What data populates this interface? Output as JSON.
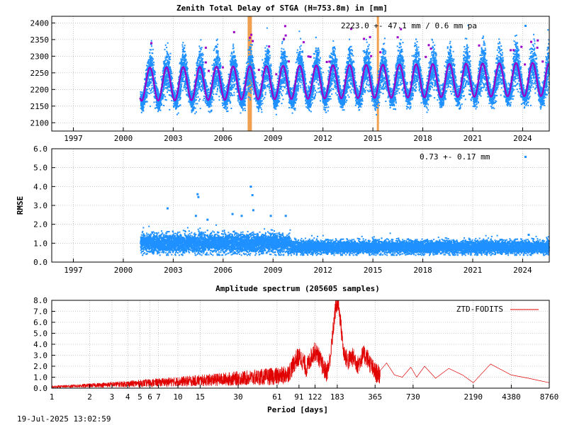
{
  "timestamp": "19-Jul-2025 13:02:59",
  "chart_data": [
    {
      "type": "scatter",
      "title": "Zenith Total Delay of STGA (H=753.8m) in [mm]",
      "xlabel": "",
      "ylabel": "",
      "xlim": [
        1995.7,
        2025.6
      ],
      "ylim": [
        2075,
        2420
      ],
      "x_ticks": [
        "1997",
        "2000",
        "2003",
        "2006",
        "2009",
        "2012",
        "2015",
        "2018",
        "2021",
        "2024"
      ],
      "y_ticks": [
        "2100",
        "2150",
        "2200",
        "2250",
        "2300",
        "2350",
        "2400"
      ],
      "annotation": "2223.0 +-  47.1 mm /  0.6 mm pa",
      "data_start": 2001.0,
      "data_end": 2025.55,
      "mean": 2223.0,
      "std": 47.1,
      "trend_per_year": 0.6,
      "seasonal_amplitude": 50,
      "seasonal_min_at": 0.1,
      "highlight_epochs": [
        2007.6,
        2015.3
      ],
      "highlight_color": "#f0a050",
      "point_color": "#1e90ff",
      "fit_color": "#9a00c8",
      "grid": true
    },
    {
      "type": "scatter",
      "title": "",
      "xlabel": "",
      "ylabel": "RMSE",
      "xlim": [
        1995.7,
        2025.6
      ],
      "ylim": [
        0.0,
        6.0
      ],
      "x_ticks": [
        "1997",
        "2000",
        "2003",
        "2006",
        "2009",
        "2012",
        "2015",
        "2018",
        "2021",
        "2024"
      ],
      "y_ticks": [
        "0.0",
        "1.0",
        "2.0",
        "3.0",
        "4.0",
        "5.0",
        "6.0"
      ],
      "annotation": "0.73 +-  0.17 mm",
      "data_start": 2001.0,
      "data_end": 2025.55,
      "mean": 0.73,
      "std": 0.17,
      "outliers": [
        {
          "x": 2002.6,
          "y": 2.9
        },
        {
          "x": 2004.4,
          "y": 3.65
        },
        {
          "x": 2004.45,
          "y": 3.5
        },
        {
          "x": 2004.3,
          "y": 2.5
        },
        {
          "x": 2005.0,
          "y": 2.3
        },
        {
          "x": 2006.5,
          "y": 2.6
        },
        {
          "x": 2007.05,
          "y": 2.5
        },
        {
          "x": 2007.6,
          "y": 4.05
        },
        {
          "x": 2007.7,
          "y": 3.6
        },
        {
          "x": 2007.75,
          "y": 2.8
        },
        {
          "x": 2008.8,
          "y": 2.5
        },
        {
          "x": 2009.7,
          "y": 2.5
        },
        {
          "x": 2024.3,
          "y": 1.5
        }
      ],
      "point_color": "#1e90ff",
      "grid": true
    },
    {
      "type": "line",
      "title": "Amplitude spectrum (205605 samples)",
      "xlabel": "Period [days]",
      "ylabel": "",
      "x_scale": "log",
      "xlim": [
        1,
        8760
      ],
      "ylim": [
        0.0,
        8.0
      ],
      "x_ticks": [
        "1",
        "2",
        "3",
        "4",
        "5",
        "6",
        "7",
        "10",
        "15",
        "30",
        "61",
        "91",
        "122",
        "183",
        "365",
        "730",
        "2190",
        "4380",
        "8760"
      ],
      "y_ticks": [
        "0.0",
        "1.0",
        "2.0",
        "3.0",
        "4.0",
        "5.0",
        "6.0",
        "7.0",
        "8.0"
      ],
      "series": [
        {
          "name": "ZTD-FODITS",
          "color": "#e00000",
          "peaks": [
            {
              "x": 183,
              "y": 7.3
            },
            {
              "x": 122,
              "y": 2.9
            },
            {
              "x": 91,
              "y": 2.4
            },
            {
              "x": 200,
              "y": 2.9
            },
            {
              "x": 240,
              "y": 2.4
            },
            {
              "x": 300,
              "y": 2.6
            },
            {
              "x": 450,
              "y": 2.3
            },
            {
              "x": 700,
              "y": 1.9
            },
            {
              "x": 900,
              "y": 2.0
            },
            {
              "x": 1400,
              "y": 1.8
            },
            {
              "x": 3000,
              "y": 2.2
            },
            {
              "x": 8760,
              "y": 0.5
            }
          ],
          "long_period_curve": [
            {
              "x": 400,
              "y": 1.6
            },
            {
              "x": 450,
              "y": 2.3
            },
            {
              "x": 520,
              "y": 1.2
            },
            {
              "x": 600,
              "y": 1.0
            },
            {
              "x": 700,
              "y": 1.9
            },
            {
              "x": 780,
              "y": 1.0
            },
            {
              "x": 900,
              "y": 2.0
            },
            {
              "x": 1100,
              "y": 0.9
            },
            {
              "x": 1400,
              "y": 1.8
            },
            {
              "x": 1800,
              "y": 1.2
            },
            {
              "x": 2190,
              "y": 0.5
            },
            {
              "x": 3000,
              "y": 2.2
            },
            {
              "x": 4380,
              "y": 1.2
            },
            {
              "x": 6000,
              "y": 0.9
            },
            {
              "x": 8760,
              "y": 0.5
            }
          ]
        }
      ],
      "legend_position": "top-right",
      "grid": true
    }
  ]
}
